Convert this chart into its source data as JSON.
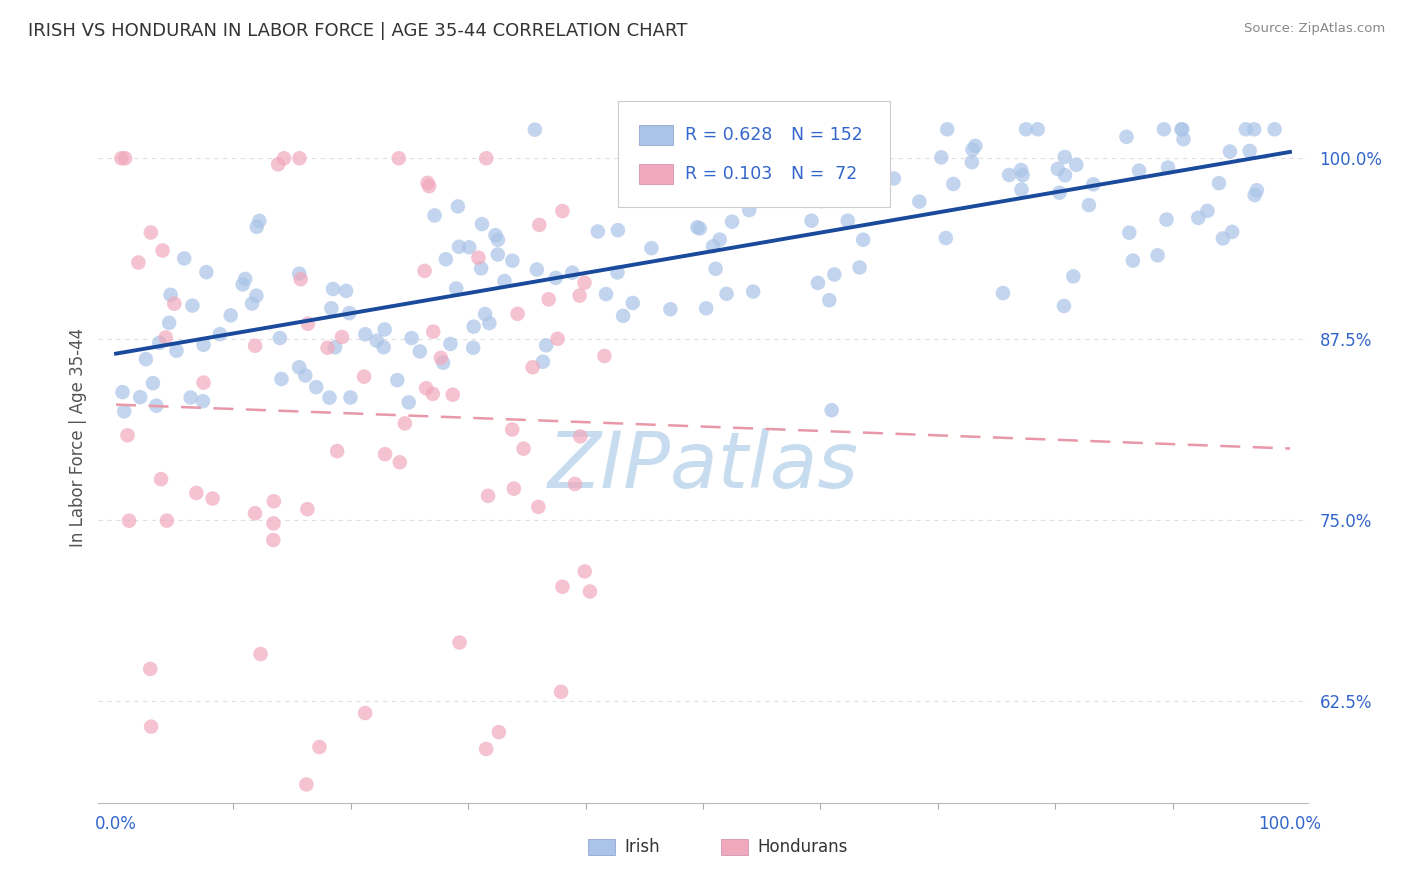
{
  "title": "IRISH VS HONDURAN IN LABOR FORCE | AGE 35-44 CORRELATION CHART",
  "source": "Source: ZipAtlas.com",
  "ylabel": "In Labor Force | Age 35-44",
  "ytick_labels": [
    "62.5%",
    "75.0%",
    "87.5%",
    "100.0%"
  ],
  "ytick_values": [
    0.625,
    0.75,
    0.875,
    1.0
  ],
  "xtick_labels": [
    "0.0%",
    "100.0%"
  ],
  "xtick_values": [
    0.0,
    1.0
  ],
  "legend_irish_R": "0.628",
  "legend_irish_N": "152",
  "legend_hondurans_R": "0.103",
  "legend_hondurans_N": "72",
  "irish_scatter_color": "#aac4e8",
  "honduran_scatter_color": "#f0a8bc",
  "irish_line_color": "#1a4a9c",
  "honduran_line_color": "#e898a8",
  "background_color": "#ffffff",
  "title_color": "#333333",
  "source_color": "#888888",
  "axis_tick_color": "#3366cc",
  "ylabel_color": "#555555",
  "legend_value_color": "#3366cc",
  "legend_label_color": "#333333",
  "watermark_color": "#c8dcf0",
  "grid_color": "#e0e0e0",
  "border_color": "#cccccc",
  "xlim": [
    -0.015,
    1.015
  ],
  "ylim": [
    0.555,
    1.06
  ],
  "seed": 42
}
